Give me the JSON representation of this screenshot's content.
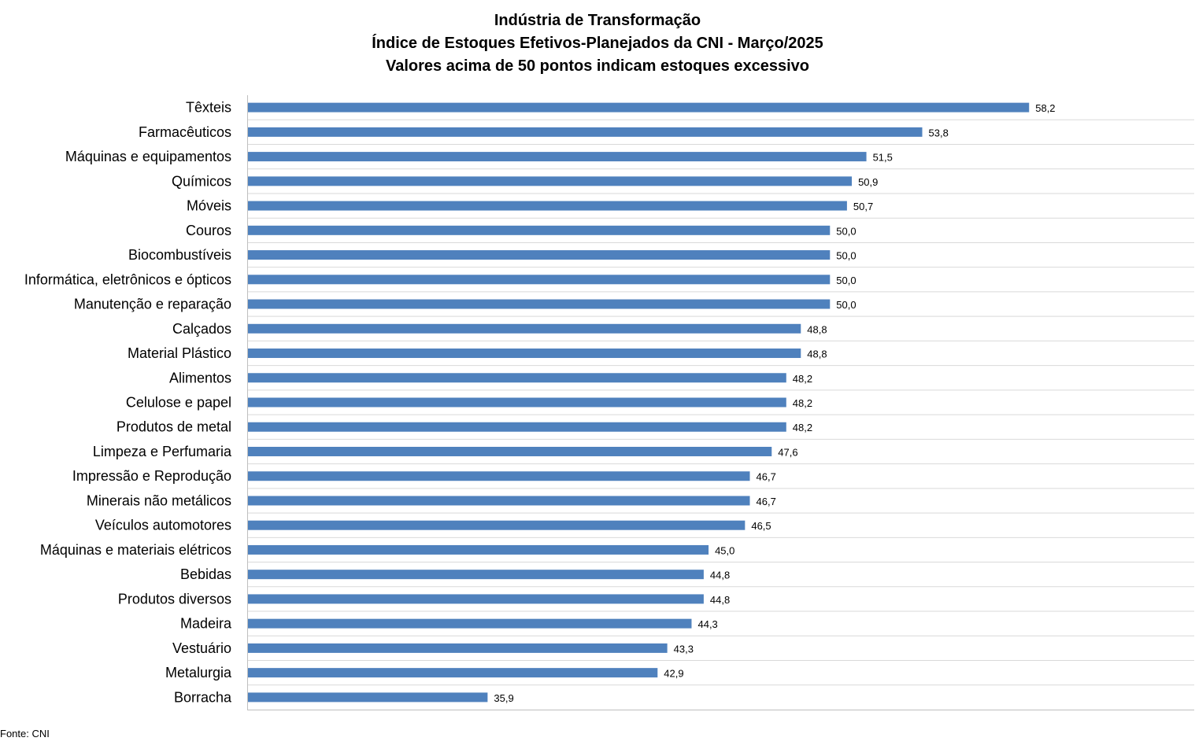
{
  "chart_data": {
    "type": "bar",
    "orientation": "horizontal",
    "title": [
      "Indústria de Transformação",
      "Índice de Estoques Efetivos-Planejados da CNI - Março/2025",
      "Valores acima de 50 pontos indicam estoques excessivo"
    ],
    "categories": [
      "Têxteis",
      "Farmacêuticos",
      "Máquinas e equipamentos",
      "Químicos",
      "Móveis",
      "Couros",
      "Biocombustíveis",
      "Informática, eletrônicos e ópticos",
      "Manutenção e reparação",
      "Calçados",
      "Material Plástico",
      "Alimentos",
      "Celulose e papel",
      "Produtos de metal",
      "Limpeza e Perfumaria",
      "Impressão e Reprodução",
      "Minerais não metálicos",
      "Veículos automotores",
      "Máquinas e materiais elétricos",
      "Bebidas",
      "Produtos diversos",
      "Madeira",
      "Vestuário",
      "Metalurgia",
      "Borracha"
    ],
    "values": [
      58.2,
      53.8,
      51.5,
      50.9,
      50.7,
      50.0,
      50.0,
      50.0,
      50.0,
      48.8,
      48.8,
      48.2,
      48.2,
      48.2,
      47.6,
      46.7,
      46.7,
      46.5,
      45.0,
      44.8,
      44.8,
      44.3,
      43.3,
      42.9,
      35.9
    ],
    "value_labels": [
      "58,2",
      "53,8",
      "51,5",
      "50,9",
      "50,7",
      "50,0",
      "50,0",
      "50,0",
      "50,0",
      "48,8",
      "48,8",
      "48,2",
      "48,2",
      "48,2",
      "47,6",
      "46,7",
      "46,7",
      "46,5",
      "45,0",
      "44,8",
      "44,8",
      "44,3",
      "43,3",
      "42,9",
      "35,9"
    ],
    "xlim": [
      26,
      65
    ],
    "grid": "horizontal separators between categories",
    "legend": "none",
    "bar_color": "#4f81bd",
    "grid_color": "#d9d9d9",
    "axis_color": "#bfbfbf"
  },
  "source_note": "Fonte: CNI"
}
